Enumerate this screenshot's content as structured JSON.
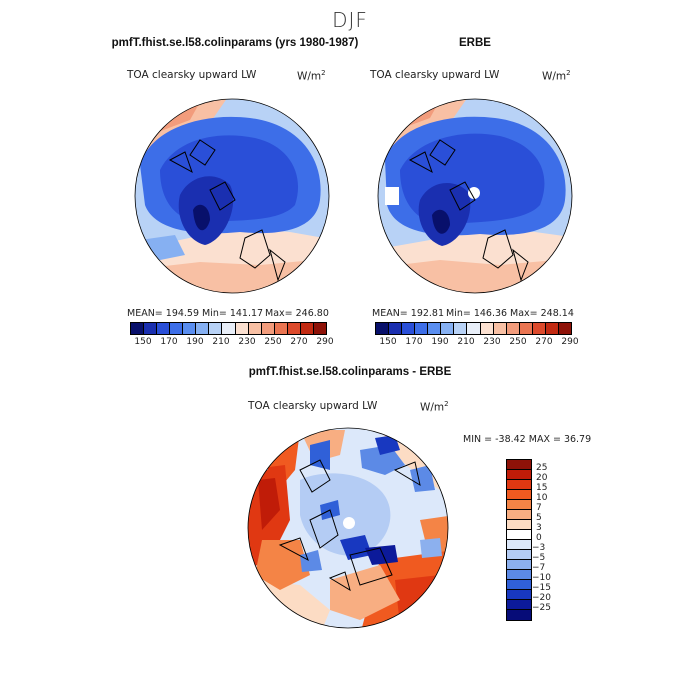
{
  "season": "DJF",
  "panels": {
    "model": {
      "title": "pmfT.fhist.se.l58.colinparams (yrs 1980-1987)",
      "label": "TOA clearsky upward LW",
      "units": "W/m",
      "units_sup": "2",
      "mean_text": "MEAN= 194.59",
      "min_text": "Min= 141.17",
      "max_text": "Max= 246.80"
    },
    "obs": {
      "title": "ERBE",
      "label": "TOA clearsky upward LW",
      "units": "W/m",
      "units_sup": "2",
      "mean_text": "MEAN= 192.81",
      "min_text": "Min= 146.36",
      "max_text": "Max= 248.14"
    },
    "diff": {
      "title": "pmfT.fhist.se.l58.colinparams - ERBE",
      "label": "TOA clearsky upward LW",
      "units": "W/m",
      "units_sup": "2",
      "minmax_text": "MIN = -38.42  MAX =  36.79"
    }
  },
  "colorbar_abs": {
    "colors": [
      "#08106b",
      "#1a2fb0",
      "#2a4fd8",
      "#3d6ee8",
      "#5a8ef0",
      "#86b0f2",
      "#b8d2f6",
      "#e8eef8",
      "#fbe0d0",
      "#f8c0a4",
      "#f29c7c",
      "#ea7552",
      "#dc4a2c",
      "#c22a12",
      "#8e1208"
    ],
    "ticks": [
      "150",
      "170",
      "190",
      "210",
      "230",
      "250",
      "270",
      "290"
    ]
  },
  "colorbar_diff": {
    "colors": [
      "#8e1208",
      "#c01c08",
      "#e03812",
      "#f05a20",
      "#f48446",
      "#f8ae82",
      "#fcdcc4",
      "#ffffff",
      "#dce8fa",
      "#b4ccf4",
      "#8cb0ee",
      "#5c8ae6",
      "#3060d8",
      "#1838c0",
      "#0c1a9a",
      "#060c78"
    ],
    "ticks": [
      "25",
      "20",
      "15",
      "10",
      "7",
      "5",
      "3",
      "0",
      "−3",
      "−5",
      "−7",
      "−10",
      "−15",
      "−20",
      "−25"
    ]
  }
}
